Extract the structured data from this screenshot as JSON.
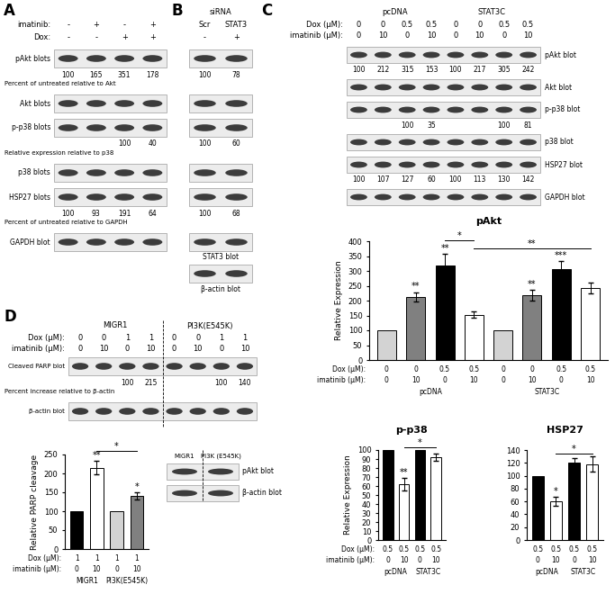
{
  "panels": {
    "A": {
      "label": "A",
      "header_rows": [
        {
          "label": "imatinib:",
          "values": [
            "-",
            "+",
            "-",
            "+"
          ]
        },
        {
          "label": "Dox:",
          "values": [
            "-",
            "-",
            "+",
            "+"
          ]
        }
      ],
      "blots": [
        {
          "name": "pAkt blots",
          "numbers": [
            100,
            165,
            351,
            178
          ],
          "numbers_label": "Percent of untreated relative to Akt"
        },
        {
          "name": "Akt blots"
        },
        {
          "name": "p-p38 blots",
          "numbers": [
            null,
            null,
            100,
            40
          ],
          "numbers_label": "Relative expression relative to p38"
        },
        {
          "name": "p38 blots"
        },
        {
          "name": "HSP27 blots",
          "numbers": [
            100,
            93,
            191,
            64
          ],
          "numbers_label": "Percent of untreated relative to GAPDH"
        },
        {
          "name": "GAPDH blot"
        }
      ]
    },
    "B": {
      "label": "B",
      "title": "siRNA",
      "header_rows": [
        {
          "values": [
            "Scr",
            "STAT3"
          ]
        },
        {
          "values": [
            "-",
            "+"
          ]
        }
      ],
      "blots": [
        {
          "numbers": [
            100,
            78
          ]
        },
        {},
        {
          "numbers": [
            100,
            60
          ]
        },
        {},
        {
          "numbers": [
            100,
            68
          ]
        },
        {
          "name": "STAT3 blot"
        },
        {
          "name": "β-actin blot"
        }
      ]
    },
    "C": {
      "label": "C",
      "groups": [
        {
          "name": "pcDNA",
          "span": [
            0,
            3
          ]
        },
        {
          "name": "STAT3C",
          "span": [
            4,
            7
          ]
        }
      ],
      "header_rows": [
        {
          "label": "Dox (μM):",
          "values": [
            0,
            0,
            0.5,
            0.5,
            0,
            0,
            0.5,
            0.5
          ]
        },
        {
          "label": "imatinib (μM):",
          "values": [
            0,
            10,
            0,
            10,
            0,
            10,
            0,
            10
          ]
        }
      ],
      "blots": [
        {
          "name": "pAkt blot",
          "numbers": [
            100,
            212,
            315,
            153,
            100,
            217,
            305,
            242
          ]
        },
        {
          "name": "Akt blot"
        },
        {
          "name": "p-p38 blot",
          "numbers": [
            null,
            null,
            100,
            35,
            null,
            null,
            100,
            81
          ]
        },
        {
          "name": "p38 blot"
        },
        {
          "name": "HSP27 blot",
          "numbers": [
            100,
            107,
            127,
            60,
            100,
            113,
            130,
            142
          ]
        },
        {
          "name": "GAPDH blot"
        }
      ]
    },
    "D": {
      "label": "D",
      "groups": [
        {
          "name": "MIGR1",
          "span": [
            0,
            3
          ]
        },
        {
          "name": "PI3K(E545K)",
          "span": [
            4,
            7
          ]
        }
      ],
      "header_rows": [
        {
          "label": "Dox (μM):",
          "values": [
            0,
            0,
            1,
            1,
            0,
            0,
            1,
            1
          ]
        },
        {
          "label": "imatinib (μM):",
          "values": [
            0,
            10,
            0,
            10,
            0,
            10,
            0,
            10
          ]
        }
      ],
      "blots": [
        {
          "name": "Cleaved PARP blot",
          "numbers": [
            null,
            null,
            100,
            215,
            null,
            null,
            100,
            140
          ],
          "numbers_label": "Percent increase relative to β-actin"
        },
        {
          "name": "β-actin blot"
        }
      ]
    },
    "D_inset": {
      "header_rows": [
        {
          "values": [
            "MIGR1",
            "PI3K (E545K)"
          ]
        }
      ],
      "blots": [
        {
          "name": "pAkt blot"
        },
        {
          "name": "β-actin blot"
        }
      ]
    }
  },
  "chart_data": [
    {
      "type": "bar",
      "title": "pAkt",
      "y_label": "Relative Expression",
      "values": [
        100,
        213,
        318,
        153,
        100,
        218,
        307,
        243
      ],
      "errors": [
        null,
        15,
        40,
        10,
        null,
        18,
        25,
        18
      ],
      "colors": [
        "#d3d3d3",
        "#808080",
        "#000000",
        "#ffffff",
        "#d3d3d3",
        "#808080",
        "#000000",
        "#ffffff"
      ],
      "ylim": [
        0,
        400
      ],
      "yticks": [
        0,
        50,
        100,
        150,
        200,
        250,
        300,
        350,
        400
      ],
      "marks": [
        null,
        "**",
        "**",
        null,
        null,
        "**",
        "***",
        null
      ],
      "brackets": [
        {
          "from": 2,
          "to": 3,
          "text": "*"
        },
        {
          "from": 3,
          "to": 7,
          "text": "**"
        }
      ],
      "x_rows": [
        {
          "label": "Dox (μM):",
          "values": [
            0,
            0,
            0.5,
            0.5,
            0,
            0,
            0.5,
            0.5
          ]
        },
        {
          "label": "imatinib (μM):",
          "values": [
            0,
            10,
            0,
            10,
            0,
            10,
            0,
            10
          ]
        }
      ],
      "groups": [
        {
          "name": "pcDNA",
          "span": [
            0,
            3
          ]
        },
        {
          "name": "STAT3C",
          "span": [
            4,
            7
          ]
        }
      ]
    },
    {
      "type": "bar",
      "title": "p-p38",
      "y_label": "Relative Expression",
      "values": [
        100,
        62,
        100,
        92
      ],
      "errors": [
        null,
        7,
        null,
        4
      ],
      "colors": [
        "#000000",
        "#ffffff",
        "#000000",
        "#ffffff"
      ],
      "ylim": [
        0,
        100
      ],
      "yticks": [
        0,
        10,
        20,
        30,
        40,
        50,
        60,
        70,
        80,
        90,
        100
      ],
      "marks": [
        null,
        "**",
        null,
        null
      ],
      "brackets": [
        {
          "from": 1,
          "to": 3,
          "text": "*"
        }
      ],
      "x_rows": [
        {
          "label": "Dox (μM):",
          "values": [
            0.5,
            0.5,
            0.5,
            0.5
          ]
        },
        {
          "label": "imatinib (μM):",
          "values": [
            0,
            10,
            0,
            10
          ]
        }
      ],
      "groups": [
        {
          "name": "pcDNA",
          "span": [
            0,
            1
          ]
        },
        {
          "name": "STAT3C",
          "span": [
            2,
            3
          ]
        }
      ]
    },
    {
      "type": "bar",
      "title": "HSP27",
      "values": [
        100,
        60,
        120,
        118
      ],
      "errors": [
        null,
        7,
        8,
        12
      ],
      "colors": [
        "#000000",
        "#ffffff",
        "#000000",
        "#ffffff"
      ],
      "ylim": [
        0,
        140
      ],
      "yticks": [
        0,
        20,
        40,
        60,
        80,
        100,
        120,
        140
      ],
      "marks": [
        null,
        "*",
        null,
        null
      ],
      "brackets": [
        {
          "from": 1,
          "to": 3,
          "text": "*"
        }
      ],
      "x_rows": [
        {
          "values": [
            0.5,
            0.5,
            0.5,
            0.5
          ]
        },
        {
          "values": [
            0,
            10,
            0,
            10
          ]
        }
      ],
      "groups": [
        {
          "name": "pcDNA",
          "span": [
            0,
            1
          ]
        },
        {
          "name": "STAT3C",
          "span": [
            2,
            3
          ]
        }
      ]
    },
    {
      "type": "bar",
      "y_label": "Relative PARP cleavage",
      "values": [
        100,
        215,
        100,
        140
      ],
      "errors": [
        null,
        18,
        null,
        10
      ],
      "colors": [
        "#000000",
        "#ffffff",
        "#d3d3d3",
        "#808080"
      ],
      "ylim": [
        0,
        250
      ],
      "yticks": [
        0,
        50,
        100,
        150,
        200,
        250
      ],
      "marks": [
        null,
        "**",
        null,
        "*"
      ],
      "brackets": [
        {
          "from": 1,
          "to": 3,
          "text": "*"
        }
      ],
      "x_rows": [
        {
          "label": "Dox (μM):",
          "values": [
            1,
            1,
            1,
            1
          ]
        },
        {
          "label": "imatinib (μM):",
          "values": [
            0,
            10,
            0,
            10
          ]
        }
      ],
      "groups": [
        {
          "name": "MIGR1",
          "span": [
            0,
            1
          ]
        },
        {
          "name": "PI3K(E545K)",
          "span": [
            2,
            3
          ]
        }
      ]
    }
  ]
}
